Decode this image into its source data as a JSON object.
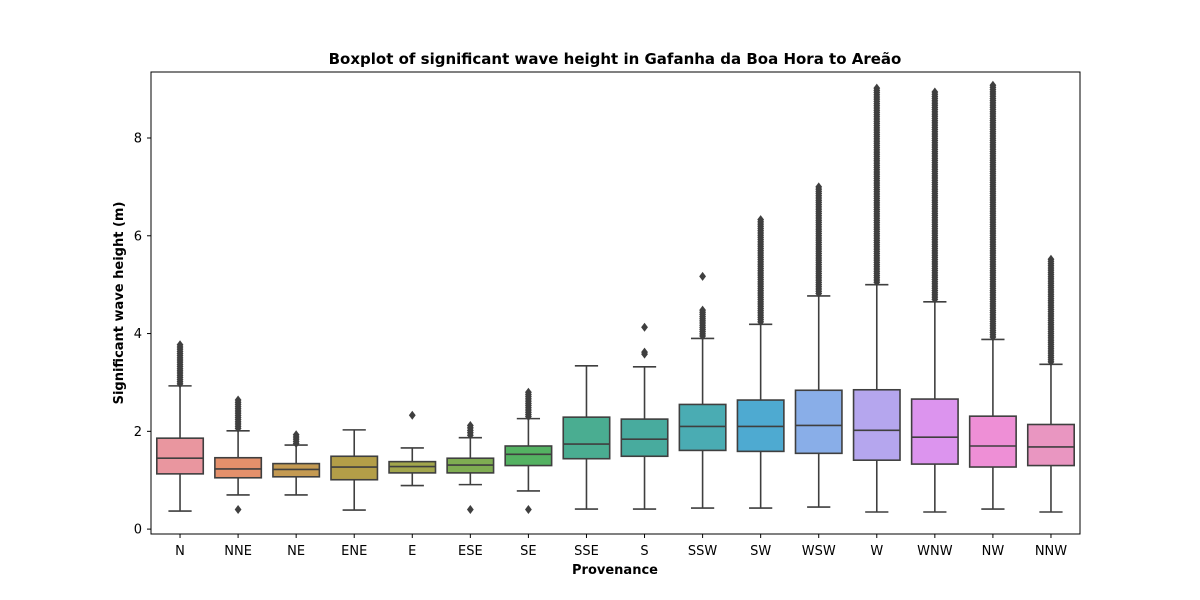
{
  "chart_data": {
    "type": "boxplot",
    "title": "Boxplot of significant wave height in Gafanha da Boa Hora to Areão",
    "xlabel": "Provenance",
    "ylabel": "Significant wave height (m)",
    "ylim": [
      -0.1,
      9.35
    ],
    "yticks": [
      0,
      2,
      4,
      6,
      8
    ],
    "grid": false,
    "legend": "none",
    "categories": [
      "N",
      "NNE",
      "NE",
      "ENE",
      "E",
      "ESE",
      "SE",
      "SSE",
      "S",
      "SSW",
      "SW",
      "WSW",
      "W",
      "WNW",
      "NW",
      "NNW"
    ],
    "boxes": [
      {
        "category": "N",
        "color": "#e9969f",
        "whisker_low": 0.37,
        "q1": 1.13,
        "median": 1.45,
        "q3": 1.86,
        "whisker_high": 2.93,
        "outliers_from": 2.97,
        "outliers_to": 3.77
      },
      {
        "category": "NNE",
        "color": "#e4906b",
        "whisker_low": 0.7,
        "q1": 1.05,
        "median": 1.23,
        "q3": 1.46,
        "whisker_high": 2.01,
        "outliers": [
          0.4
        ],
        "outliers_from": 2.06,
        "outliers_to": 2.64
      },
      {
        "category": "NE",
        "color": "#c49a52",
        "whisker_low": 0.7,
        "q1": 1.07,
        "median": 1.22,
        "q3": 1.34,
        "whisker_high": 1.72,
        "outliers_from": 1.75,
        "outliers_to": 1.93
      },
      {
        "category": "ENE",
        "color": "#b39e48",
        "whisker_low": 0.39,
        "q1": 1.01,
        "median": 1.27,
        "q3": 1.49,
        "whisker_high": 2.03
      },
      {
        "category": "E",
        "color": "#a2a64c",
        "whisker_low": 0.89,
        "q1": 1.15,
        "median": 1.28,
        "q3": 1.38,
        "whisker_high": 1.66,
        "outliers": [
          2.33
        ]
      },
      {
        "category": "ESE",
        "color": "#7fad52",
        "whisker_low": 0.91,
        "q1": 1.15,
        "median": 1.31,
        "q3": 1.45,
        "whisker_high": 1.87,
        "outliers": [
          0.4
        ],
        "outliers_from": 1.92,
        "outliers_to": 2.12
      },
      {
        "category": "SE",
        "color": "#54b262",
        "whisker_low": 0.78,
        "q1": 1.3,
        "median": 1.53,
        "q3": 1.7,
        "whisker_high": 2.26,
        "outliers": [
          0.4
        ],
        "outliers_from": 2.3,
        "outliers_to": 2.8
      },
      {
        "category": "SSE",
        "color": "#4aad91",
        "whisker_low": 0.41,
        "q1": 1.44,
        "median": 1.74,
        "q3": 2.29,
        "whisker_high": 3.34
      },
      {
        "category": "S",
        "color": "#48ab9e",
        "whisker_low": 0.41,
        "q1": 1.49,
        "median": 1.84,
        "q3": 2.25,
        "whisker_high": 3.32,
        "outliers": [
          3.58,
          3.62,
          4.13
        ]
      },
      {
        "category": "SSW",
        "color": "#4aacb3",
        "whisker_low": 0.43,
        "q1": 1.61,
        "median": 2.1,
        "q3": 2.55,
        "whisker_high": 3.9,
        "outliers_from": 3.95,
        "outliers_to": 4.48,
        "outliers": [
          5.17
        ]
      },
      {
        "category": "SW",
        "color": "#4eaad1",
        "whisker_low": 0.43,
        "q1": 1.59,
        "median": 2.1,
        "q3": 2.64,
        "whisker_high": 4.19,
        "outliers_from": 4.24,
        "outliers_to": 6.33
      },
      {
        "category": "WSW",
        "color": "#89aee8",
        "whisker_low": 0.45,
        "q1": 1.55,
        "median": 2.12,
        "q3": 2.84,
        "whisker_high": 4.77,
        "outliers_from": 4.82,
        "outliers_to": 7.0
      },
      {
        "category": "W",
        "color": "#b5a6ee",
        "whisker_low": 0.35,
        "q1": 1.41,
        "median": 2.02,
        "q3": 2.85,
        "whisker_high": 5.0,
        "outliers_from": 5.05,
        "outliers_to": 9.02
      },
      {
        "category": "WNW",
        "color": "#dc94ee",
        "whisker_low": 0.35,
        "q1": 1.33,
        "median": 1.88,
        "q3": 2.66,
        "whisker_high": 4.65,
        "outliers_from": 4.7,
        "outliers_to": 8.94
      },
      {
        "category": "NW",
        "color": "#ee8fd6",
        "whisker_low": 0.41,
        "q1": 1.27,
        "median": 1.7,
        "q3": 2.31,
        "whisker_high": 3.88,
        "outliers_from": 3.93,
        "outliers_to": 9.08
      },
      {
        "category": "NNW",
        "color": "#e996c1",
        "whisker_low": 0.35,
        "q1": 1.3,
        "median": 1.68,
        "q3": 2.14,
        "whisker_high": 3.37,
        "outliers_from": 3.42,
        "outliers_to": 5.52
      }
    ]
  }
}
